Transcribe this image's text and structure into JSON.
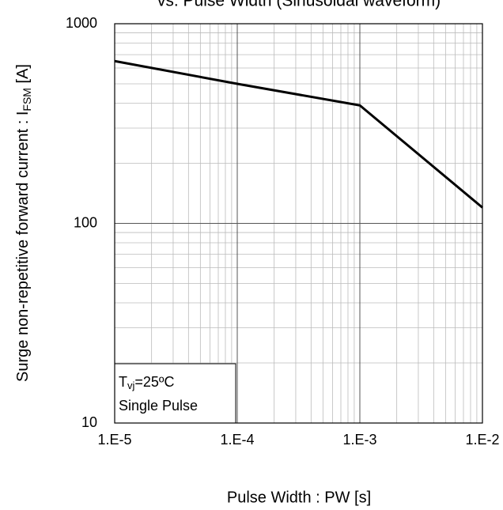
{
  "chart_data": {
    "type": "line",
    "title": "vs. Pulse Width (Sinusoidal waveform)",
    "xlabel": "Pulse Width : PW [s]",
    "ylabel": {
      "text": "Surge non-repetitive forward current : I",
      "sub": "FSM",
      "unit": " [A]"
    },
    "annotation": {
      "symbol": "T",
      "sub": "vj",
      "text": "=25ºC",
      "line2": "Single Pulse"
    },
    "x": [
      1e-05,
      0.0001,
      0.001,
      0.01
    ],
    "series": [
      {
        "name": "IFSM",
        "color": "#000000",
        "values": [
          650,
          500,
          390,
          120
        ]
      }
    ],
    "xlim": [
      1e-05,
      0.01
    ],
    "ylim": [
      10,
      1000
    ],
    "xticks": [
      {
        "value": 1e-05,
        "label": "1.E-5"
      },
      {
        "value": 0.0001,
        "label": "1.E-4"
      },
      {
        "value": 0.001,
        "label": "1.E-3"
      },
      {
        "value": 0.01,
        "label": "1.E-2"
      }
    ],
    "yticks": [
      10,
      100,
      1000
    ],
    "xlog": true,
    "ylog": true,
    "grid": true
  }
}
